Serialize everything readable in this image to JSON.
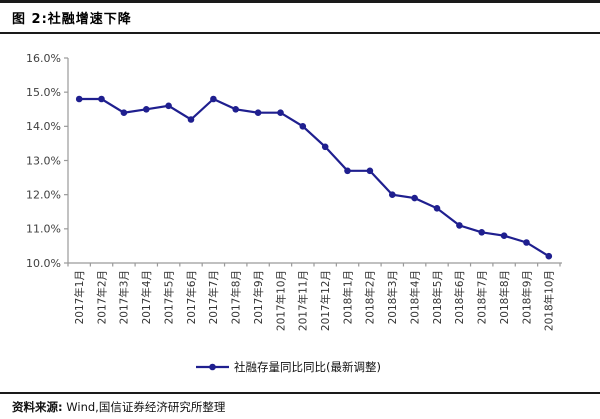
{
  "page": {
    "title": "图 2:社融增速下降"
  },
  "footer": {
    "source_label": "资料来源:",
    "source_text": "Wind,国信证券经济研究所整理"
  },
  "colors": {
    "rule": "#1a1a1a",
    "axis": "#9a9a9a",
    "tick_label": "#404040",
    "series_line": "#1f1f8f"
  },
  "chart_data": {
    "type": "line",
    "title": "图 2:社融增速下降",
    "categories": [
      "2017年1月",
      "2017年2月",
      "2017年3月",
      "2017年4月",
      "2017年5月",
      "2017年6月",
      "2017年7月",
      "2017年8月",
      "2017年9月",
      "2017年10月",
      "2017年11月",
      "2017年12月",
      "2018年1月",
      "2018年2月",
      "2018年3月",
      "2018年4月",
      "2018年5月",
      "2018年6月",
      "2018年7月",
      "2018年8月",
      "2018年9月",
      "2018年10月"
    ],
    "series": [
      {
        "name": "社融存量同比同比(最新调整)",
        "values": [
          14.8,
          14.8,
          14.4,
          14.5,
          14.6,
          14.2,
          14.8,
          14.5,
          14.4,
          14.4,
          14.0,
          13.4,
          12.7,
          12.7,
          12.0,
          11.9,
          11.6,
          11.1,
          10.9,
          10.8,
          10.6,
          10.2
        ]
      }
    ],
    "xlabel": "",
    "ylabel": "",
    "ylim": [
      10,
      16
    ],
    "y_ticks": [
      "16.0%",
      "15.0%",
      "14.0%",
      "13.0%",
      "12.0%",
      "11.0%",
      "10.0%"
    ],
    "grid": false,
    "legend_position": "bottom",
    "line_color": "#1f1f8f",
    "marker": "circle"
  }
}
